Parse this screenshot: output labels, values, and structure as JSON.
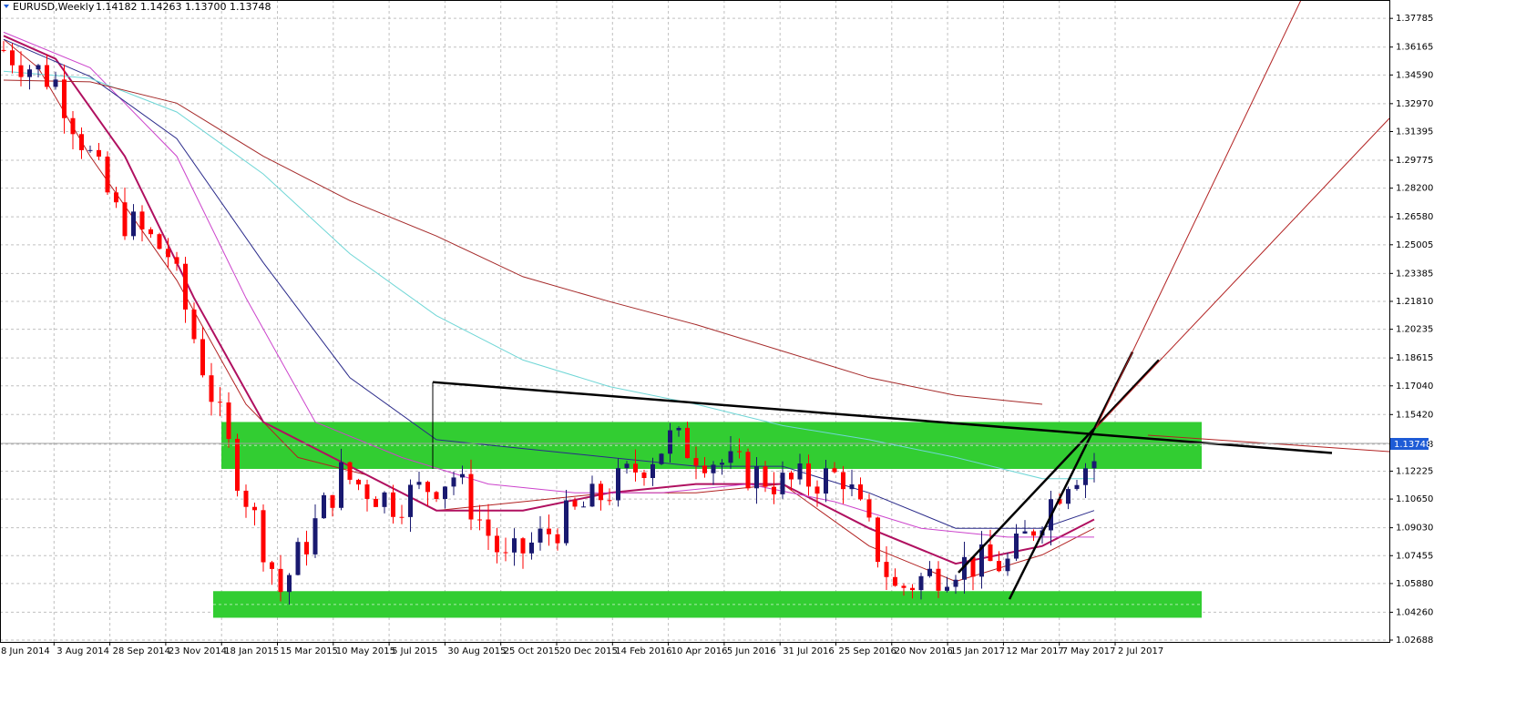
{
  "header": {
    "symbol": "EURUSD,Weekly",
    "ohlc": "1.14182 1.14263 1.13700 1.13748"
  },
  "colors": {
    "bull": "#191970",
    "bear": "#ff0000",
    "zone": "#32cd32",
    "grid": "#c0c0c0",
    "ma_red": "#b22222",
    "ma_purple": "#b01060",
    "ma_magenta": "#cc44cc",
    "ma_navy": "#2a2a8a",
    "ma_cyan": "#6fd6d6",
    "ma_brown": "#a52a2a",
    "price_tag": "#1e5bd6"
  },
  "chart_data": {
    "type": "candlestick",
    "ylim": [
      1.02688,
      1.38565
    ],
    "y_ticks": [
      "1.37785",
      "1.36165",
      "1.34590",
      "1.32970",
      "1.31395",
      "1.29775",
      "1.28200",
      "1.26580",
      "1.25005",
      "1.23385",
      "1.21810",
      "1.20235",
      "1.18615",
      "1.17040",
      "1.15420",
      "1.13748",
      "1.12225",
      "1.10650",
      "1.09030",
      "1.07455",
      "1.05880",
      "1.04260",
      "1.02688"
    ],
    "x_ticks": [
      "8 Jun 2014",
      "3 Aug 2014",
      "28 Sep 2014",
      "23 Nov 2014",
      "18 Jan 2015",
      "15 Mar 2015",
      "10 May 2015",
      "5 Jul 2015",
      "30 Aug 2015",
      "25 Oct 2015",
      "20 Dec 2015",
      "14 Feb 2016",
      "10 Apr 2016",
      "5 Jun 2016",
      "31 Jul 2016",
      "25 Sep 2016",
      "20 Nov 2016",
      "15 Jan 2017",
      "12 Mar 2017",
      "7 May 2017",
      "2 Jul 2017"
    ],
    "current_price": "1.13748",
    "close_points": [
      [
        "8 Jun 2014",
        1.36
      ],
      [
        "3 Aug 2014",
        1.342
      ],
      [
        "28 Sep 2014",
        1.268
      ],
      [
        "23 Nov 2014",
        1.245
      ],
      [
        "18 Jan 2015",
        1.135
      ],
      [
        "15 Mar 2015",
        1.055
      ],
      [
        "10 May 2015",
        1.12
      ],
      [
        "5 Jul 2015",
        1.105
      ],
      [
        "30 Aug 2015",
        1.12
      ],
      [
        "25 Oct 2015",
        1.07
      ],
      [
        "20 Dec 2015",
        1.095
      ],
      [
        "14 Feb 2016",
        1.115
      ],
      [
        "10 Apr 2016",
        1.14
      ],
      [
        "5 Jun 2016",
        1.125
      ],
      [
        "31 Jul 2016",
        1.115
      ],
      [
        "25 Sep 2016",
        1.12
      ],
      [
        "20 Nov 2016",
        1.055
      ],
      [
        "15 Jan 2017",
        1.07
      ],
      [
        "12 Mar 2017",
        1.07
      ],
      [
        "7 May 2017",
        1.12
      ],
      [
        "2 Jul 2017",
        1.13748
      ]
    ],
    "zones": [
      {
        "from": 1.1235,
        "to": 1.15
      },
      {
        "from": 1.0395,
        "to": 1.0545
      }
    ],
    "moving_averages": [
      {
        "color": "ma_red",
        "points": [
          [
            0,
            1.366
          ],
          [
            4,
            1.35
          ],
          [
            10,
            1.3
          ],
          [
            20,
            1.23
          ],
          [
            28,
            1.16
          ],
          [
            34,
            1.13
          ],
          [
            42,
            1.12
          ],
          [
            50,
            1.1
          ],
          [
            60,
            1.105
          ],
          [
            70,
            1.11
          ],
          [
            80,
            1.11
          ],
          [
            90,
            1.115
          ],
          [
            100,
            1.08
          ],
          [
            110,
            1.06
          ],
          [
            120,
            1.075
          ],
          [
            126,
            1.09
          ]
        ]
      },
      {
        "color": "ma_purple",
        "points": [
          [
            0,
            1.368
          ],
          [
            6,
            1.355
          ],
          [
            14,
            1.3
          ],
          [
            22,
            1.22
          ],
          [
            30,
            1.15
          ],
          [
            40,
            1.125
          ],
          [
            50,
            1.1
          ],
          [
            60,
            1.1
          ],
          [
            70,
            1.11
          ],
          [
            80,
            1.115
          ],
          [
            90,
            1.115
          ],
          [
            100,
            1.09
          ],
          [
            110,
            1.07
          ],
          [
            120,
            1.08
          ],
          [
            126,
            1.095
          ]
        ]
      },
      {
        "color": "ma_magenta",
        "points": [
          [
            0,
            1.37
          ],
          [
            10,
            1.35
          ],
          [
            20,
            1.3
          ],
          [
            28,
            1.22
          ],
          [
            36,
            1.15
          ],
          [
            46,
            1.13
          ],
          [
            56,
            1.115
          ],
          [
            66,
            1.11
          ],
          [
            76,
            1.11
          ],
          [
            86,
            1.115
          ],
          [
            96,
            1.105
          ],
          [
            106,
            1.09
          ],
          [
            116,
            1.085
          ],
          [
            126,
            1.085
          ]
        ]
      },
      {
        "color": "ma_navy",
        "points": [
          [
            0,
            1.366
          ],
          [
            10,
            1.345
          ],
          [
            20,
            1.31
          ],
          [
            30,
            1.24
          ],
          [
            40,
            1.175
          ],
          [
            50,
            1.14
          ],
          [
            60,
            1.135
          ],
          [
            70,
            1.13
          ],
          [
            80,
            1.125
          ],
          [
            90,
            1.125
          ],
          [
            100,
            1.11
          ],
          [
            110,
            1.09
          ],
          [
            120,
            1.09
          ],
          [
            126,
            1.1
          ]
        ]
      },
      {
        "color": "ma_cyan",
        "points": [
          [
            0,
            1.348
          ],
          [
            10,
            1.344
          ],
          [
            20,
            1.325
          ],
          [
            30,
            1.29
          ],
          [
            40,
            1.245
          ],
          [
            50,
            1.21
          ],
          [
            60,
            1.185
          ],
          [
            70,
            1.17
          ],
          [
            80,
            1.16
          ],
          [
            90,
            1.148
          ],
          [
            100,
            1.14
          ],
          [
            110,
            1.13
          ],
          [
            120,
            1.118
          ],
          [
            126,
            1.118
          ]
        ]
      },
      {
        "color": "ma_brown",
        "points": [
          [
            0,
            1.343
          ],
          [
            10,
            1.342
          ],
          [
            20,
            1.33
          ],
          [
            30,
            1.3
          ],
          [
            40,
            1.275
          ],
          [
            50,
            1.255
          ],
          [
            60,
            1.232
          ],
          [
            70,
            1.218
          ],
          [
            80,
            1.205
          ],
          [
            90,
            1.19
          ],
          [
            100,
            1.175
          ],
          [
            110,
            1.165
          ],
          [
            120,
            1.16
          ]
        ]
      }
    ],
    "trendlines": [
      {
        "color": "#000000",
        "from": [
          1.1725,
          "30 Aug 2015"
        ],
        "to": [
          1.1382,
          "after 2 Jul 2017"
        ]
      },
      {
        "color": "#000000",
        "from": [
          1.065,
          "15 Jan 2017"
        ],
        "to": [
          1.185,
          "after 2 Jul 2017"
        ]
      },
      {
        "color": "#000000",
        "from": [
          1.05,
          "12 Mar 2017"
        ],
        "to": [
          1.1895,
          "after 2 Jul 2017"
        ]
      }
    ],
    "grid": true,
    "legend": "none"
  }
}
